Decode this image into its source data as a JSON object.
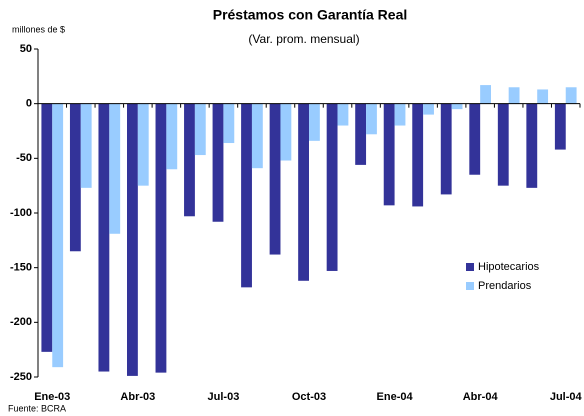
{
  "chart_data": {
    "type": "bar",
    "title": "Préstamos con Garantía Real",
    "subtitle": "(Var. prom. mensual)",
    "y_label": "millones de $",
    "source": "Fuente: BCRA",
    "categories": [
      "Ene-03",
      null,
      null,
      "Abr-03",
      null,
      null,
      "Jul-03",
      null,
      null,
      "Oct-03",
      null,
      null,
      "Ene-04",
      null,
      null,
      "Abr-04",
      null,
      null,
      "Jul-04"
    ],
    "series": [
      {
        "name": "Hipotecarios",
        "color": "#333399",
        "values": [
          -227,
          -135,
          -245,
          -249,
          -246,
          -103,
          -108,
          -168,
          -138,
          -162,
          -153,
          -56,
          -93,
          -94,
          -83,
          -65,
          -75,
          -77,
          -42
        ]
      },
      {
        "name": "Prendarios",
        "color": "#99ccff",
        "values": [
          -241,
          -77,
          -119,
          -75,
          -60,
          -47,
          -36,
          -59,
          -52,
          -34,
          -20,
          -28,
          -20,
          -10,
          -5,
          17,
          15,
          13,
          15
        ]
      }
    ],
    "ylim": [
      -250,
      50
    ],
    "yticks": [
      -250,
      -200,
      -150,
      -100,
      -50,
      0,
      50
    ]
  }
}
